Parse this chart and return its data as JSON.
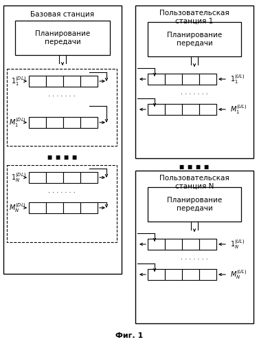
{
  "title": "Фиг. 1",
  "bg_color": "#ffffff",
  "left_panel": {
    "title": "Базовая станция",
    "scheduler_text": "Планирование\nпередачи",
    "group1_label1": "$1_1^{(DL)}$",
    "group1_label2": "$M_1^{(DL)}$",
    "group2_label1": "$1_N^{(DL)}$",
    "group2_label2": "$M_N^{(DL)}$"
  },
  "right_top_panel": {
    "title": "Пользовательская\nстанция 1",
    "scheduler_text": "Планирование\nпередачи",
    "label1": "$1_1^{(UL)}$",
    "label2": "$M_1^{(UL)}$"
  },
  "right_bottom_panel": {
    "title": "Пользовательская\nстанция N",
    "scheduler_text": "Планирование\nпередачи",
    "label1": "$1_N^{(UL)}$",
    "label2": "$M_N^{(UL)}$"
  }
}
